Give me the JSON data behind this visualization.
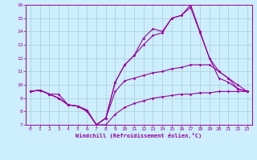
{
  "background_color": "#cceeff",
  "grid_color": "#aacccc",
  "line_color": "#990099",
  "xlim": [
    -0.5,
    23.5
  ],
  "ylim": [
    7,
    16
  ],
  "xticks": [
    0,
    1,
    2,
    3,
    4,
    5,
    6,
    7,
    8,
    9,
    10,
    11,
    12,
    13,
    14,
    15,
    16,
    17,
    18,
    19,
    20,
    21,
    22,
    23
  ],
  "yticks": [
    7,
    8,
    9,
    10,
    11,
    12,
    13,
    14,
    15,
    16
  ],
  "xlabel": "Windchill (Refroidissement éolien,°C)",
  "series": [
    {
      "x": [
        0,
        1,
        2,
        3,
        4,
        5,
        6,
        7,
        8,
        9,
        10,
        11,
        12,
        13,
        14,
        15,
        16,
        17,
        18,
        19,
        20,
        21,
        22,
        23
      ],
      "y": [
        9.5,
        9.6,
        9.3,
        9.3,
        8.5,
        8.4,
        8.0,
        7.0,
        7.0,
        7.8,
        8.3,
        8.6,
        8.8,
        9.0,
        9.1,
        9.2,
        9.3,
        9.3,
        9.4,
        9.4,
        9.5,
        9.5,
        9.5,
        9.5
      ]
    },
    {
      "x": [
        0,
        1,
        2,
        3,
        4,
        5,
        6,
        7,
        8,
        9,
        10,
        11,
        12,
        13,
        14,
        15,
        16,
        17,
        18,
        19,
        20,
        21,
        22,
        23
      ],
      "y": [
        9.5,
        9.6,
        9.3,
        9.0,
        8.5,
        8.4,
        8.1,
        7.0,
        7.5,
        9.5,
        10.3,
        10.5,
        10.7,
        10.9,
        11.0,
        11.2,
        11.3,
        11.5,
        11.5,
        11.5,
        11.0,
        10.5,
        9.7,
        9.5
      ]
    },
    {
      "x": [
        0,
        1,
        2,
        3,
        4,
        5,
        6,
        7,
        8,
        9,
        10,
        11,
        12,
        13,
        14,
        15,
        16,
        17,
        18,
        19,
        20,
        21,
        22,
        23
      ],
      "y": [
        9.5,
        9.6,
        9.3,
        9.0,
        8.5,
        8.4,
        8.1,
        7.0,
        7.5,
        10.2,
        11.5,
        12.2,
        13.0,
        13.7,
        13.9,
        15.0,
        15.2,
        15.8,
        13.9,
        12.0,
        11.0,
        10.5,
        10.0,
        9.5
      ]
    },
    {
      "x": [
        0,
        1,
        2,
        3,
        4,
        5,
        6,
        7,
        8,
        9,
        10,
        11,
        12,
        13,
        14,
        15,
        16,
        17,
        18,
        19,
        20,
        21,
        22,
        23
      ],
      "y": [
        9.5,
        9.6,
        9.3,
        9.0,
        8.5,
        8.4,
        8.1,
        7.0,
        7.5,
        10.2,
        11.5,
        12.2,
        13.5,
        14.2,
        14.0,
        15.0,
        15.2,
        16.0,
        14.0,
        12.0,
        10.5,
        10.2,
        9.7,
        9.5
      ]
    }
  ]
}
